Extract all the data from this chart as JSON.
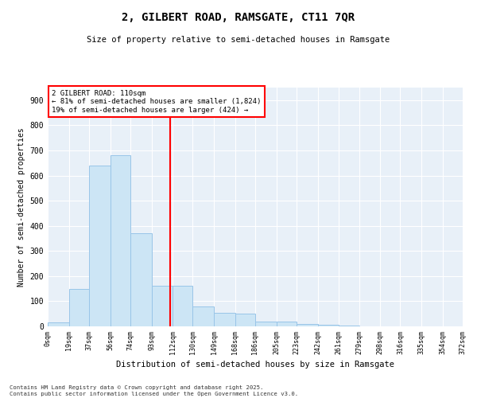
{
  "title": "2, GILBERT ROAD, RAMSGATE, CT11 7QR",
  "subtitle": "Size of property relative to semi-detached houses in Ramsgate",
  "xlabel": "Distribution of semi-detached houses by size in Ramsgate",
  "ylabel": "Number of semi-detached properties",
  "footnote": "Contains HM Land Registry data © Crown copyright and database right 2025.\nContains public sector information licensed under the Open Government Licence v3.0.",
  "annotation_title": "2 GILBERT ROAD: 110sqm",
  "annotation_line1": "← 81% of semi-detached houses are smaller (1,824)",
  "annotation_line2": "19% of semi-detached houses are larger (424) →",
  "property_size": 110,
  "bar_color": "#cce5f5",
  "bar_edge_color": "#99c5e8",
  "vline_color": "red",
  "annotation_box_color": "red",
  "background_color": "#e8f0f8",
  "tick_labels": [
    "0sqm",
    "19sqm",
    "37sqm",
    "56sqm",
    "74sqm",
    "93sqm",
    "112sqm",
    "130sqm",
    "149sqm",
    "168sqm",
    "186sqm",
    "205sqm",
    "223sqm",
    "242sqm",
    "261sqm",
    "279sqm",
    "298sqm",
    "316sqm",
    "335sqm",
    "354sqm",
    "372sqm"
  ],
  "bin_edges": [
    0,
    19,
    37,
    56,
    74,
    93,
    112,
    130,
    149,
    168,
    186,
    205,
    223,
    242,
    261,
    279,
    298,
    316,
    335,
    354,
    372
  ],
  "bar_heights": [
    15,
    150,
    640,
    680,
    370,
    160,
    160,
    80,
    55,
    50,
    20,
    20,
    10,
    5,
    2,
    0,
    0,
    0,
    0,
    0
  ],
  "ylim": [
    0,
    950
  ],
  "yticks": [
    0,
    100,
    200,
    300,
    400,
    500,
    600,
    700,
    800,
    900
  ]
}
